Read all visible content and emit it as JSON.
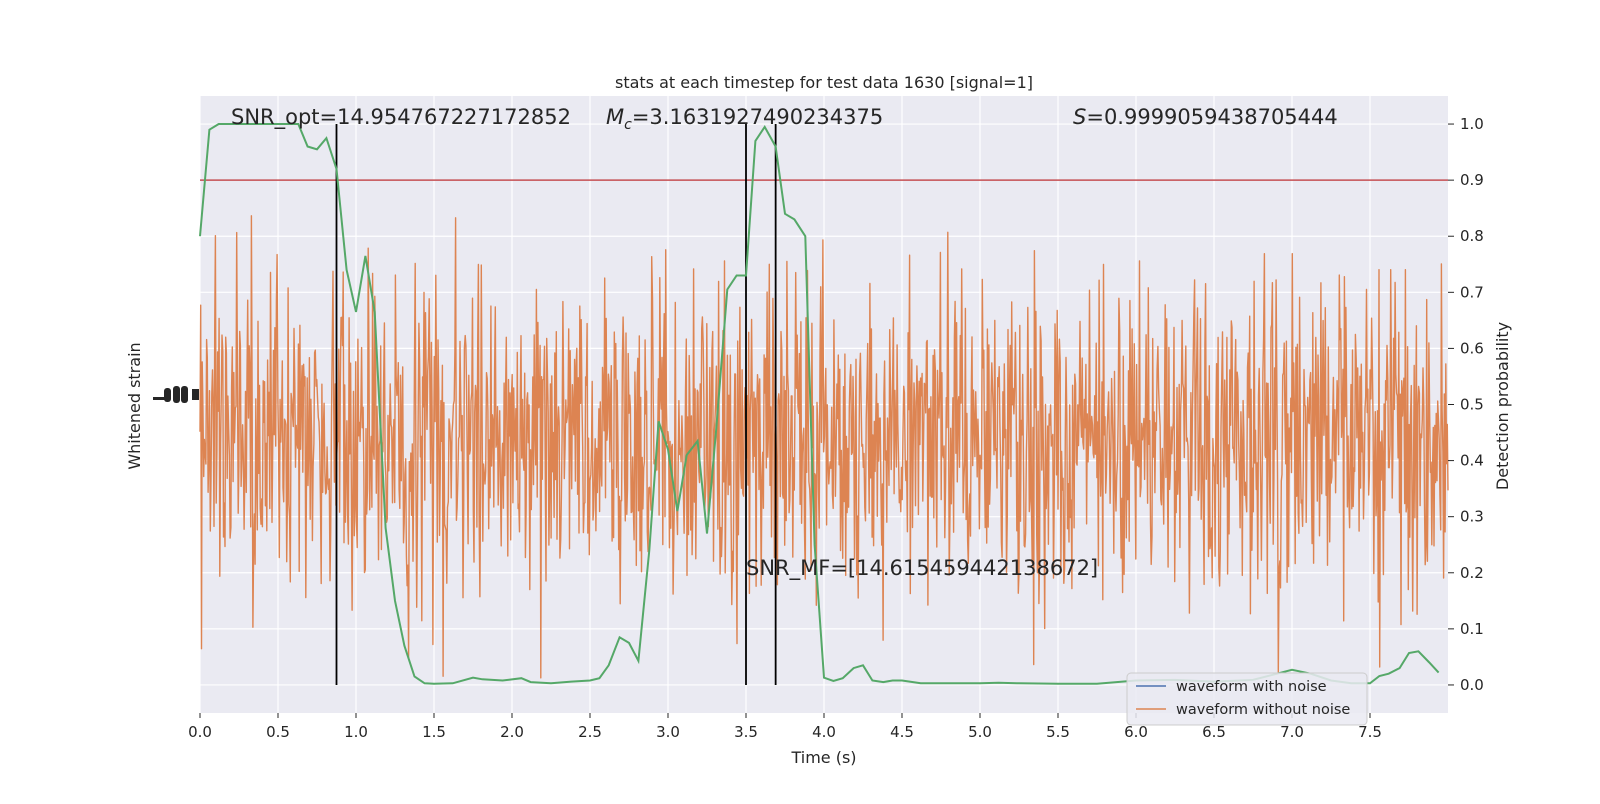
{
  "chart_data": {
    "type": "line",
    "title": "stats at each timestep for test data 1630 [signal=1]",
    "xlabel": "Time (s)",
    "ylabel_left": "Whitened strain",
    "ylabel_right": "Detection probability",
    "xlim": [
      0.0,
      8.0
    ],
    "ylim_right": [
      -0.05,
      1.05
    ],
    "xticks": [
      "0.0",
      "0.5",
      "1.0",
      "1.5",
      "2.0",
      "2.5",
      "3.0",
      "3.5",
      "4.0",
      "4.5",
      "5.0",
      "5.5",
      "6.0",
      "6.5",
      "7.0",
      "7.5"
    ],
    "xtick_values": [
      0,
      0.5,
      1,
      1.5,
      2,
      2.5,
      3,
      3.5,
      4,
      4.5,
      5,
      5.5,
      6,
      6.5,
      7,
      7.5
    ],
    "yticks_right": [
      "0.0",
      "0.1",
      "0.2",
      "0.3",
      "0.4",
      "0.5",
      "0.6",
      "0.7",
      "0.8",
      "0.9",
      "1.0"
    ],
    "ytick_values_right": [
      0,
      0.1,
      0.2,
      0.3,
      0.4,
      0.5,
      0.6,
      0.7,
      0.8,
      0.9,
      1.0
    ],
    "grid": true,
    "legend_placement": "lower-right",
    "threshold": 0.9,
    "vertical_lines": [
      0.875,
      3.5,
      3.69
    ],
    "annotations": {
      "snr_opt": "SNR_opt=14.954767227172852",
      "mc_symbol": "M",
      "mc_sub": "c",
      "mc_value": "=3.1631927490234375",
      "s_symbol": "S",
      "s_value": "=0.9999059438705444",
      "snr_mf": "SNR_MF=[14.615459442138672]"
    },
    "series": [
      {
        "name": "waveform with noise",
        "color": "#4c72b0"
      },
      {
        "name": "waveform without noise",
        "color": "#dd8452"
      },
      {
        "color": "#55a868",
        "x": [
          0.0,
          0.06,
          0.12,
          0.25,
          0.5,
          0.63,
          0.69,
          0.75,
          0.81,
          0.875,
          0.94,
          1.0,
          1.06,
          1.12,
          1.19,
          1.25,
          1.31,
          1.375,
          1.44,
          1.5,
          1.62,
          1.75,
          1.81,
          1.94,
          2.06,
          2.12,
          2.25,
          2.38,
          2.5,
          2.56,
          2.62,
          2.69,
          2.75,
          2.81,
          2.88,
          2.94,
          3.0,
          3.06,
          3.12,
          3.19,
          3.25,
          3.31,
          3.38,
          3.44,
          3.5,
          3.56,
          3.62,
          3.69,
          3.75,
          3.81,
          3.88,
          3.94,
          4.0,
          4.06,
          4.12,
          4.19,
          4.25,
          4.31,
          4.38,
          4.44,
          4.5,
          4.62,
          4.75,
          5.0,
          5.12,
          5.25,
          5.5,
          5.75,
          6.0,
          6.25,
          6.5,
          6.75,
          7.0,
          7.12,
          7.25,
          7.38,
          7.5,
          7.56,
          7.62,
          7.69,
          7.75,
          7.81,
          7.88,
          7.94
        ],
        "values": [
          0.8,
          0.99,
          1.0,
          1.0,
          1.0,
          1.0,
          0.96,
          0.955,
          0.975,
          0.92,
          0.74,
          0.665,
          0.765,
          0.665,
          0.28,
          0.15,
          0.07,
          0.015,
          0.003,
          0.002,
          0.003,
          0.013,
          0.01,
          0.008,
          0.012,
          0.005,
          0.003,
          0.006,
          0.008,
          0.012,
          0.035,
          0.085,
          0.075,
          0.043,
          0.24,
          0.47,
          0.42,
          0.31,
          0.41,
          0.435,
          0.27,
          0.46,
          0.705,
          0.73,
          0.73,
          0.97,
          0.995,
          0.96,
          0.84,
          0.83,
          0.8,
          0.25,
          0.013,
          0.007,
          0.012,
          0.03,
          0.035,
          0.008,
          0.005,
          0.008,
          0.008,
          0.003,
          0.003,
          0.003,
          0.004,
          0.003,
          0.002,
          0.002,
          0.008,
          0.009,
          0.006,
          0.009,
          0.027,
          0.02,
          0.008,
          0.003,
          0.003,
          0.016,
          0.02,
          0.03,
          0.057,
          0.06,
          0.04,
          0.022
        ]
      }
    ],
    "colors": {
      "background": "#eaeaf2",
      "grid": "#ffffff",
      "threshold": "#c44e52",
      "vline": "#000000"
    }
  }
}
